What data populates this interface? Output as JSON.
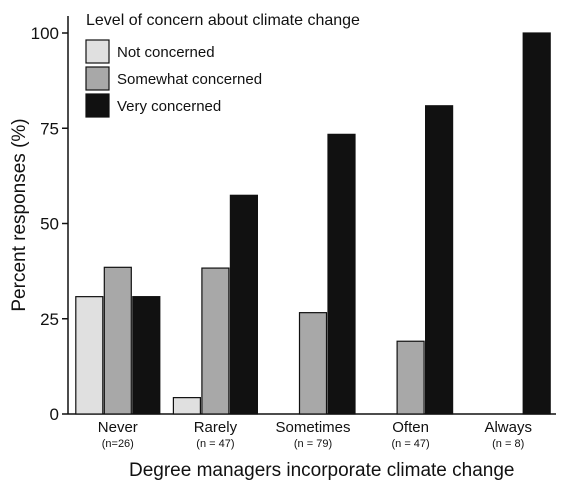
{
  "chart_data": {
    "type": "bar",
    "xlabel": "Degree managers incorporate climate change",
    "ylabel": "Percent responses (%)",
    "ylim": [
      0,
      100
    ],
    "yticks": [
      "0",
      "25",
      "50",
      "75",
      "100"
    ],
    "categories": [
      "Never",
      "Rarely",
      "Sometimes",
      "Often",
      "Always"
    ],
    "category_sublabels": [
      "(n=26)",
      "(n = 47)",
      "(n = 79)",
      "(n = 47)",
      "(n = 8)"
    ],
    "legend_title": "Level of concern about climate change",
    "legend_position": "top-left",
    "grid": false,
    "series": [
      {
        "name": "Not concerned",
        "color": "#e0e0e0",
        "values": [
          30.8,
          4.3,
          0,
          0,
          0
        ]
      },
      {
        "name": "Somewhat concerned",
        "color": "#a8a8a8",
        "values": [
          38.5,
          38.3,
          26.6,
          19.1,
          0
        ]
      },
      {
        "name": "Very concerned",
        "color": "#111111",
        "values": [
          30.8,
          57.4,
          73.4,
          80.9,
          100
        ]
      }
    ]
  }
}
